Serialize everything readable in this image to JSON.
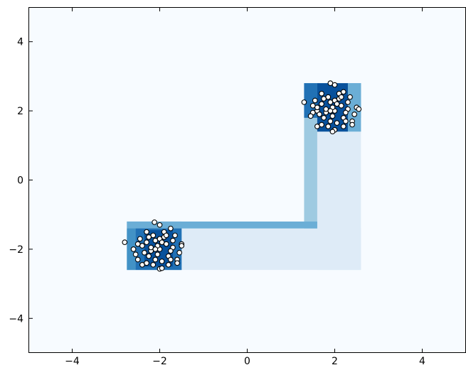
{
  "colors": {
    "background": "#f7fbff",
    "tree_level_1": "#deebf7",
    "tree_level_2": "#c6dbef",
    "tree_level_3": "#9ecae1",
    "tree_level_4": "#6baed6",
    "tree_level_5": "#4292c6",
    "tree_level_6": "#2171b5",
    "tree_level_7": "#08519c",
    "point_fill": "#ffffff",
    "point_edge": "#000000"
  },
  "chart_data": {
    "type": "scatter",
    "title": "",
    "xlabel": "",
    "ylabel": "",
    "xlim": [
      -5,
      5
    ],
    "ylim": [
      -5,
      5
    ],
    "xticks": [
      -4,
      -2,
      0,
      2,
      4
    ],
    "yticks": [
      -4,
      -2,
      0,
      2,
      4
    ],
    "xtick_labels": [
      "−4",
      "−2",
      "0",
      "2",
      "4"
    ],
    "ytick_labels": [
      "−4",
      "−2",
      "0",
      "2",
      "4"
    ],
    "grid": false,
    "legend": "none",
    "regions": [
      {
        "x": [
          -2.75,
          2.6
        ],
        "y": [
          -2.6,
          -1.4
        ],
        "level": 1
      },
      {
        "x": [
          1.6,
          2.6
        ],
        "y": [
          -2.6,
          2.8
        ],
        "level": 1
      },
      {
        "x": [
          1.3,
          1.6
        ],
        "y": [
          -1.4,
          2.8
        ],
        "level": 3
      },
      {
        "x": [
          -2.75,
          1.6
        ],
        "y": [
          -1.4,
          -1.2
        ],
        "level": 4
      },
      {
        "x": [
          -2.75,
          -1.5
        ],
        "y": [
          -2.6,
          -1.2
        ],
        "level": 4
      },
      {
        "x": [
          -2.75,
          -2.55
        ],
        "y": [
          -2.6,
          -1.4
        ],
        "level": 5
      },
      {
        "x": [
          -2.55,
          -1.5
        ],
        "y": [
          -2.6,
          -1.4
        ],
        "level": 6
      },
      {
        "x": [
          -2.35,
          -1.7
        ],
        "y": [
          -2.5,
          -1.45
        ],
        "level": 7
      },
      {
        "x": [
          1.3,
          2.6
        ],
        "y": [
          1.8,
          2.8
        ],
        "level": 4
      },
      {
        "x": [
          2.3,
          2.6
        ],
        "y": [
          1.4,
          2.8
        ],
        "level": 4
      },
      {
        "x": [
          1.3,
          1.6
        ],
        "y": [
          1.8,
          2.8
        ],
        "level": 6
      },
      {
        "x": [
          1.6,
          2.3
        ],
        "y": [
          1.4,
          2.8
        ],
        "level": 7
      }
    ],
    "clusters": [
      {
        "points": [
          [
            -2.8,
            -1.8
          ],
          [
            -2.12,
            -1.22
          ],
          [
            -2.0,
            -1.3
          ],
          [
            -2.3,
            -1.5
          ],
          [
            -1.75,
            -1.4
          ],
          [
            -1.5,
            -1.85
          ],
          [
            -1.5,
            -1.9
          ],
          [
            -2.6,
            -2.0
          ],
          [
            -2.0,
            -2.57
          ],
          [
            -1.95,
            -2.55
          ],
          [
            -2.3,
            -2.4
          ],
          [
            -1.6,
            -2.3
          ],
          [
            -2.5,
            -2.3
          ],
          [
            -2.2,
            -2.05
          ],
          [
            -1.8,
            -2.2
          ],
          [
            -2.1,
            -1.75
          ],
          [
            -1.9,
            -1.65
          ],
          [
            -2.4,
            -1.9
          ],
          [
            -1.7,
            -1.95
          ],
          [
            -2.0,
            -2.0
          ],
          [
            -2.15,
            -1.6
          ],
          [
            -1.85,
            -1.85
          ],
          [
            -2.25,
            -2.2
          ],
          [
            -1.95,
            -2.35
          ],
          [
            -2.05,
            -1.9
          ],
          [
            -2.45,
            -1.7
          ],
          [
            -1.65,
            -1.6
          ],
          [
            -2.3,
            -1.8
          ],
          [
            -1.75,
            -2.05
          ],
          [
            -2.1,
            -2.3
          ],
          [
            -1.9,
            -1.5
          ],
          [
            -2.2,
            -1.95
          ],
          [
            -1.55,
            -2.1
          ],
          [
            -2.35,
            -2.1
          ],
          [
            -2.0,
            -1.7
          ],
          [
            -1.8,
            -2.45
          ],
          [
            -2.55,
            -2.15
          ],
          [
            -1.7,
            -1.75
          ],
          [
            -2.05,
            -2.15
          ],
          [
            -1.95,
            -1.8
          ],
          [
            -2.4,
            -2.45
          ],
          [
            -2.15,
            -2.45
          ],
          [
            -1.6,
            -2.4
          ],
          [
            -2.25,
            -1.65
          ],
          [
            -1.85,
            -1.6
          ],
          [
            -2.5,
            -1.85
          ],
          [
            -2.1,
            -2.0
          ],
          [
            -1.75,
            -2.3
          ]
        ]
      },
      {
        "points": [
          [
            1.3,
            2.25
          ],
          [
            1.9,
            2.8
          ],
          [
            2.0,
            2.75
          ],
          [
            2.2,
            2.55
          ],
          [
            1.7,
            2.5
          ],
          [
            2.5,
            2.1
          ],
          [
            2.55,
            2.05
          ],
          [
            1.6,
            2.0
          ],
          [
            2.0,
            1.45
          ],
          [
            1.95,
            1.4
          ],
          [
            1.7,
            1.6
          ],
          [
            2.4,
            1.7
          ],
          [
            1.5,
            1.95
          ],
          [
            1.8,
            1.95
          ],
          [
            2.2,
            1.8
          ],
          [
            1.9,
            2.25
          ],
          [
            2.1,
            2.35
          ],
          [
            1.6,
            2.1
          ],
          [
            2.3,
            2.05
          ],
          [
            2.0,
            2.0
          ],
          [
            1.85,
            2.4
          ],
          [
            2.15,
            2.15
          ],
          [
            1.75,
            1.8
          ],
          [
            2.05,
            1.65
          ],
          [
            1.95,
            2.1
          ],
          [
            1.55,
            2.3
          ],
          [
            2.35,
            2.4
          ],
          [
            1.7,
            2.2
          ],
          [
            2.25,
            1.95
          ],
          [
            1.9,
            1.7
          ],
          [
            2.1,
            2.5
          ],
          [
            1.8,
            2.05
          ],
          [
            2.45,
            1.9
          ],
          [
            1.65,
            1.9
          ],
          [
            2.0,
            2.3
          ],
          [
            2.2,
            1.55
          ],
          [
            1.45,
            1.85
          ],
          [
            2.3,
            2.25
          ],
          [
            1.95,
            1.85
          ],
          [
            2.05,
            2.2
          ],
          [
            1.6,
            1.55
          ],
          [
            1.85,
            1.55
          ],
          [
            2.4,
            1.6
          ],
          [
            1.75,
            2.35
          ],
          [
            2.15,
            2.4
          ],
          [
            1.5,
            2.15
          ],
          [
            1.9,
            2.0
          ],
          [
            2.25,
            1.7
          ]
        ]
      }
    ]
  }
}
